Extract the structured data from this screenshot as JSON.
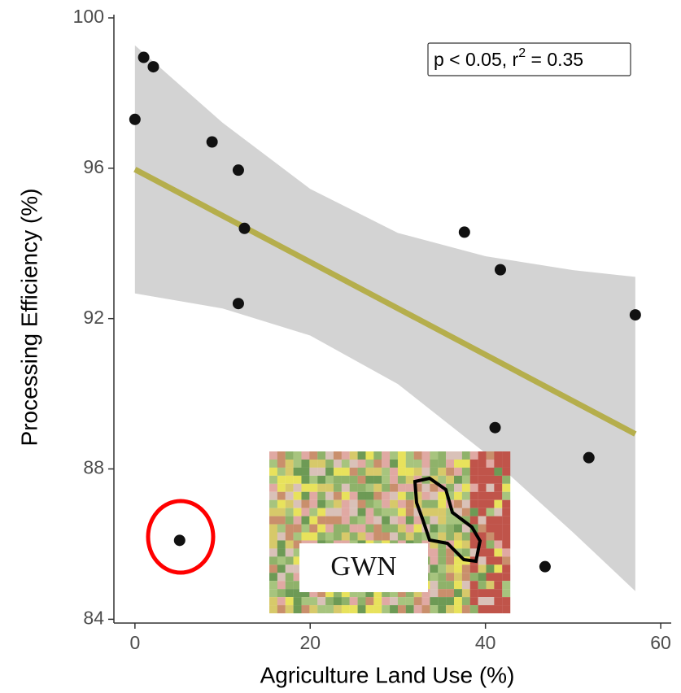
{
  "chart_data": {
    "type": "scatter",
    "x_label": "Agriculture Land Use (%)",
    "y_label": "Processing Efficiency (%)",
    "annotation": {
      "text": "p < 0.05, r",
      "sup": "2",
      "rest": " = 0.35"
    },
    "inset_label": "GWN",
    "xlim": [
      -2.4,
      61.2
    ],
    "ylim": [
      83.9,
      100
    ],
    "xticks": [
      0,
      20,
      40,
      60
    ],
    "yticks": [
      84,
      88,
      92,
      96,
      100
    ],
    "x": [
      0,
      1,
      2.1,
      8.8,
      11.8,
      12.5,
      11.8,
      37.6,
      41.7,
      57.1,
      41.1,
      51.8,
      46.8,
      5.1
    ],
    "values": [
      97.3,
      98.95,
      98.7,
      96.7,
      95.95,
      94.4,
      92.4,
      94.3,
      93.3,
      92.1,
      89.1,
      88.3,
      85.4,
      86.1
    ],
    "color": "#111111",
    "fit": {
      "x": [
        0,
        57.1
      ],
      "values": [
        95.97,
        88.93
      ],
      "color": "#b5ae4c"
    },
    "band": {
      "x": [
        0,
        10,
        20,
        30,
        40,
        50,
        57.1
      ],
      "upper": [
        99.27,
        97.21,
        95.45,
        94.28,
        93.66,
        93.29,
        93.11
      ],
      "lower": [
        92.67,
        92.27,
        91.55,
        90.26,
        88.42,
        86.31,
        84.75
      ],
      "color": "#d3d3d3"
    }
  }
}
